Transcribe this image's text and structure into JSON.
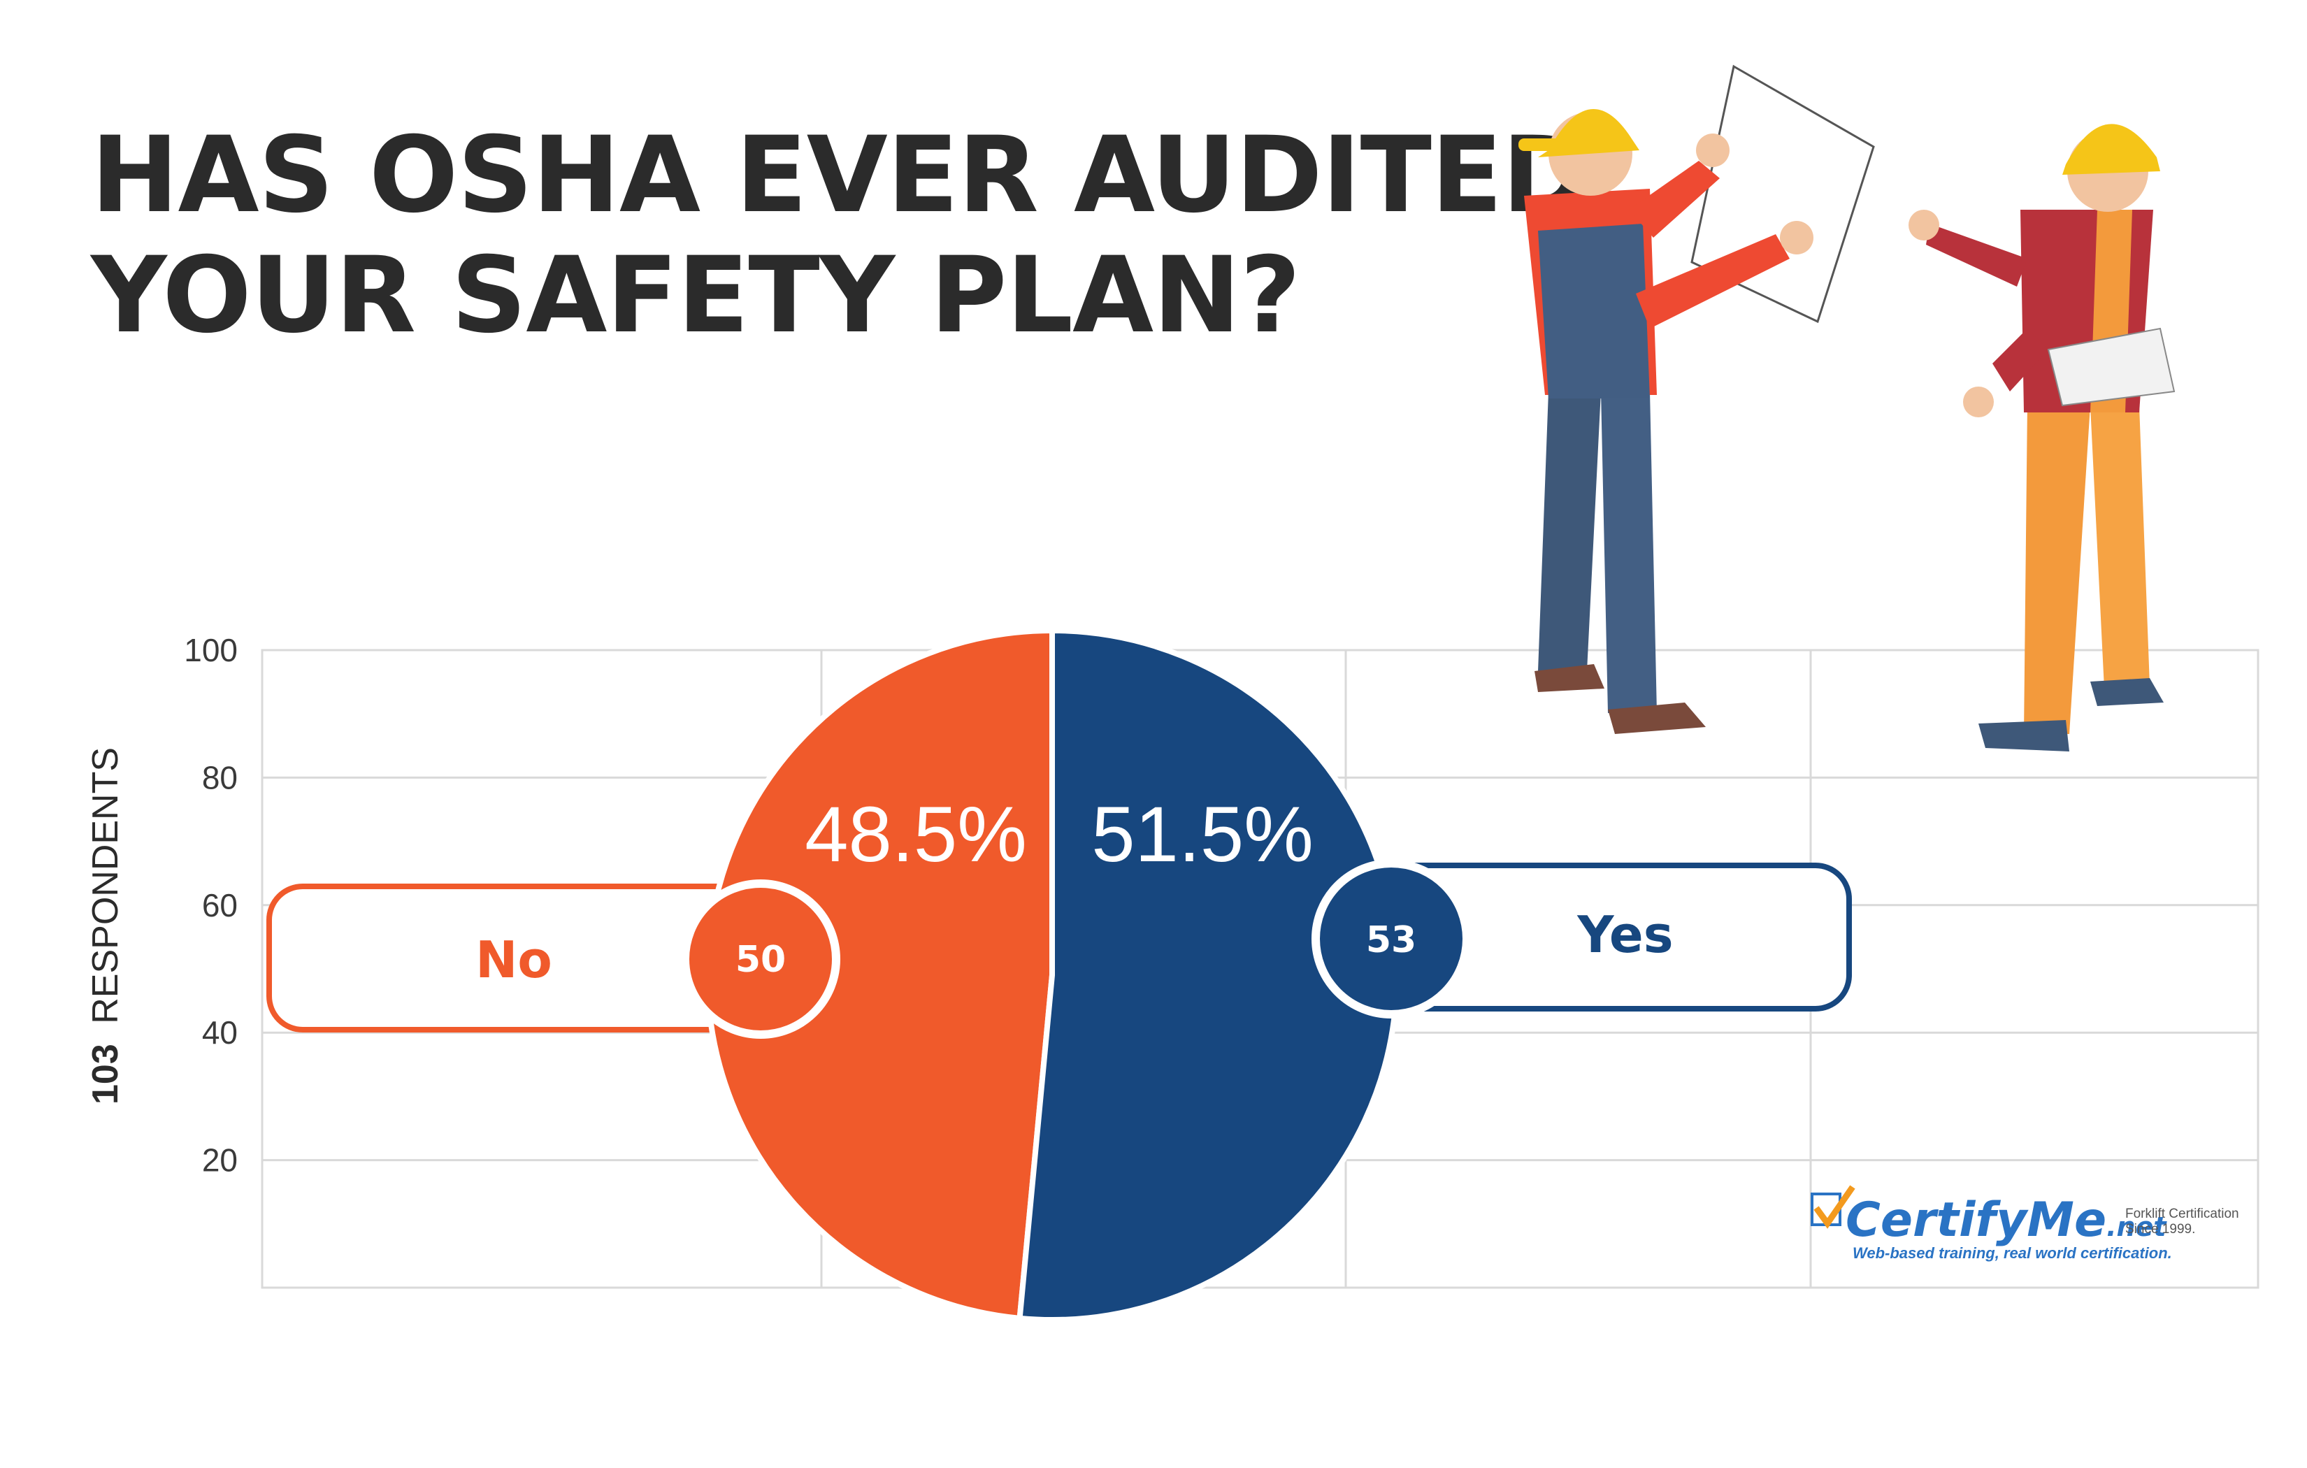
{
  "title_line1": "HAS OSHA EVER AUDITED",
  "title_line2": "YOUR SAFETY PLAN?",
  "respondents_count": "103",
  "respondents_word": "RESPONDENTS",
  "logo": {
    "name": "CertifyMe",
    "suffix": ".net",
    "side_line1": "Forklift Certification",
    "side_line2": "Since 1999.",
    "tagline": "Web-based training, real world certification."
  },
  "colors": {
    "no": "#f05a2b",
    "yes": "#17477f",
    "grid": "#d9d9d9"
  },
  "chart_data": {
    "type": "pie",
    "title": "HAS OSHA EVER AUDITED YOUR SAFETY PLAN?",
    "slices": [
      {
        "label": "No",
        "count": "50",
        "percent": "48.5%",
        "value": 48.5
      },
      {
        "label": "Yes",
        "count": "53",
        "percent": "51.5%",
        "value": 51.5
      }
    ],
    "y_ticks": [
      "100",
      "80",
      "60",
      "40",
      "20"
    ],
    "grid": true
  }
}
